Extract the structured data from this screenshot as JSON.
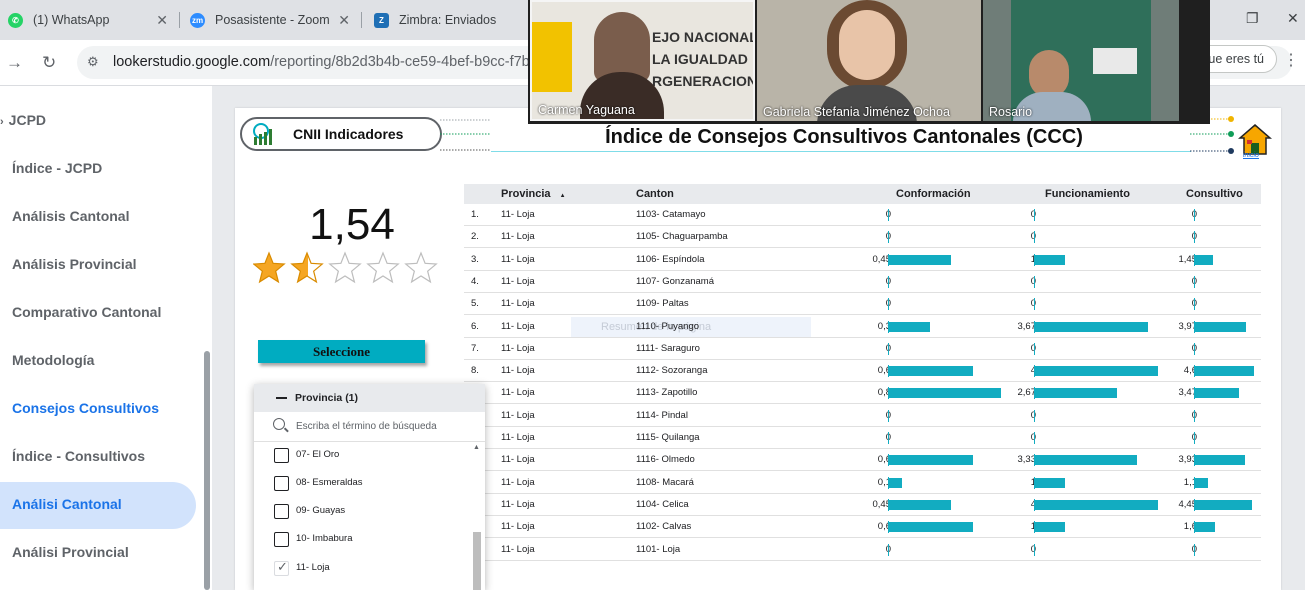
{
  "browser": {
    "tabs": [
      {
        "title": "(1) WhatsApp",
        "icon": "whatsapp-icon",
        "color": "#25d366"
      },
      {
        "title": "Posasistente - Zoom",
        "icon": "zoom-icon",
        "color": "#2d8cff"
      },
      {
        "title": "Zimbra: Enviados",
        "icon": "zimbra-icon",
        "color": "#1f6fb5"
      }
    ],
    "url_host": "lookerstudio.google.com",
    "url_path": "/reporting/8b2d3b4b-ce59-4bef-b9cc-f7b",
    "chip_label": "que eres tú"
  },
  "sidebar": {
    "items": [
      {
        "label": "JCPD"
      },
      {
        "label": "Índice - JCPD"
      },
      {
        "label": "Análisis Cantonal"
      },
      {
        "label": "Análisis Provincial"
      },
      {
        "label": "Comparativo Cantonal"
      },
      {
        "label": "Metodología"
      },
      {
        "label": "Consejos Consultivos"
      },
      {
        "label": "Índice - Consultivos"
      },
      {
        "label": "Análisi Cantonal"
      },
      {
        "label": "Análisi Provincial"
      }
    ]
  },
  "report": {
    "logo_text": "CNII Indicadores",
    "title": "Índice de Consejos Consultivos Cantonales (CCC)",
    "home_label": "inicio",
    "score": "1,54",
    "rating": 1.54,
    "rating_max": 5,
    "select_button": "Seleccione",
    "faint_control": "Resumen de la página"
  },
  "dropdown": {
    "title": "Provincia (1)",
    "search_placeholder": "Escriba el término de búsqueda",
    "options": [
      {
        "label": "07- El Oro",
        "checked": false
      },
      {
        "label": "08- Esmeraldas",
        "checked": false
      },
      {
        "label": "09- Guayas",
        "checked": false
      },
      {
        "label": "10- Imbabura",
        "checked": false
      },
      {
        "label": "11- Loja",
        "checked": true
      }
    ]
  },
  "table": {
    "headers": {
      "provincia": "Provincia",
      "canton": "Canton",
      "conformacion": "Conformación",
      "funcionamiento": "Funcionamiento",
      "consultivo": "Consultivo"
    },
    "sort_indicator": "▲",
    "bar_color": "#12acc1",
    "rows": [
      {
        "idx": "1.",
        "provincia": "11- Loja",
        "canton": "1103- Catamayo",
        "conf": "0",
        "func": "0",
        "cons": "0",
        "conf_n": 0,
        "func_n": 0,
        "cons_n": 0
      },
      {
        "idx": "2.",
        "provincia": "11- Loja",
        "canton": "1105- Chaguarpamba",
        "conf": "0",
        "func": "0",
        "cons": "0",
        "conf_n": 0,
        "func_n": 0,
        "cons_n": 0
      },
      {
        "idx": "3.",
        "provincia": "11- Loja",
        "canton": "1106- Espíndola",
        "conf": "0,45",
        "func": "1",
        "cons": "1,45",
        "conf_n": 0.45,
        "func_n": 1,
        "cons_n": 1.45
      },
      {
        "idx": "4.",
        "provincia": "11- Loja",
        "canton": "1107- Gonzanamá",
        "conf": "0",
        "func": "0",
        "cons": "0",
        "conf_n": 0,
        "func_n": 0,
        "cons_n": 0
      },
      {
        "idx": "5.",
        "provincia": "11- Loja",
        "canton": "1109- Paltas",
        "conf": "0",
        "func": "0",
        "cons": "0",
        "conf_n": 0,
        "func_n": 0,
        "cons_n": 0
      },
      {
        "idx": "6.",
        "provincia": "11- Loja",
        "canton": "1110- Puyango",
        "conf": "0,3",
        "func": "3,67",
        "cons": "3,97",
        "conf_n": 0.3,
        "func_n": 3.67,
        "cons_n": 3.97
      },
      {
        "idx": "7.",
        "provincia": "11- Loja",
        "canton": "1111- Saraguro",
        "conf": "0",
        "func": "0",
        "cons": "0",
        "conf_n": 0,
        "func_n": 0,
        "cons_n": 0
      },
      {
        "idx": "8.",
        "provincia": "11- Loja",
        "canton": "1112- Sozoranga",
        "conf": "0,6",
        "func": "4",
        "cons": "4,6",
        "conf_n": 0.6,
        "func_n": 4,
        "cons_n": 4.6
      },
      {
        "idx": "",
        "provincia": "11- Loja",
        "canton": "1113- Zapotillo",
        "conf": "0,8",
        "func": "2,67",
        "cons": "3,47",
        "conf_n": 0.8,
        "func_n": 2.67,
        "cons_n": 3.47
      },
      {
        "idx": "",
        "provincia": "11- Loja",
        "canton": "1114- Pindal",
        "conf": "0",
        "func": "0",
        "cons": "0",
        "conf_n": 0,
        "func_n": 0,
        "cons_n": 0
      },
      {
        "idx": "",
        "provincia": "11- Loja",
        "canton": "1115- Quilanga",
        "conf": "0",
        "func": "0",
        "cons": "0",
        "conf_n": 0,
        "func_n": 0,
        "cons_n": 0
      },
      {
        "idx": "",
        "provincia": "11- Loja",
        "canton": "1116- Olmedo",
        "conf": "0,6",
        "func": "3,33",
        "cons": "3,93",
        "conf_n": 0.6,
        "func_n": 3.33,
        "cons_n": 3.93
      },
      {
        "idx": "",
        "provincia": "11- Loja",
        "canton": "1108- Macará",
        "conf": "0,1",
        "func": "1",
        "cons": "1,1",
        "conf_n": 0.1,
        "func_n": 1,
        "cons_n": 1.1
      },
      {
        "idx": "",
        "provincia": "11- Loja",
        "canton": "1104- Celica",
        "conf": "0,45",
        "func": "4",
        "cons": "4,45",
        "conf_n": 0.45,
        "func_n": 4,
        "cons_n": 4.45
      },
      {
        "idx": "",
        "provincia": "11- Loja",
        "canton": "1102- Calvas",
        "conf": "0,6",
        "func": "1",
        "cons": "1,6",
        "conf_n": 0.6,
        "func_n": 1,
        "cons_n": 1.6
      },
      {
        "idx": "",
        "provincia": "11- Loja",
        "canton": "1101- Loja",
        "conf": "0",
        "func": "0",
        "cons": "0",
        "conf_n": 0,
        "func_n": 0,
        "cons_n": 0
      }
    ]
  },
  "video": {
    "participants": [
      {
        "name": "Carmen Yaguana",
        "bg": "#e9e6df",
        "banner": "EJO NACIONAL LA IGUALDAD RGENERACIONA"
      },
      {
        "name": "Gabriela Stefania Jiménez Ochoa",
        "bg": "#b9b4a8"
      },
      {
        "name": "Rosario",
        "bg": "#6f7d78"
      }
    ]
  }
}
